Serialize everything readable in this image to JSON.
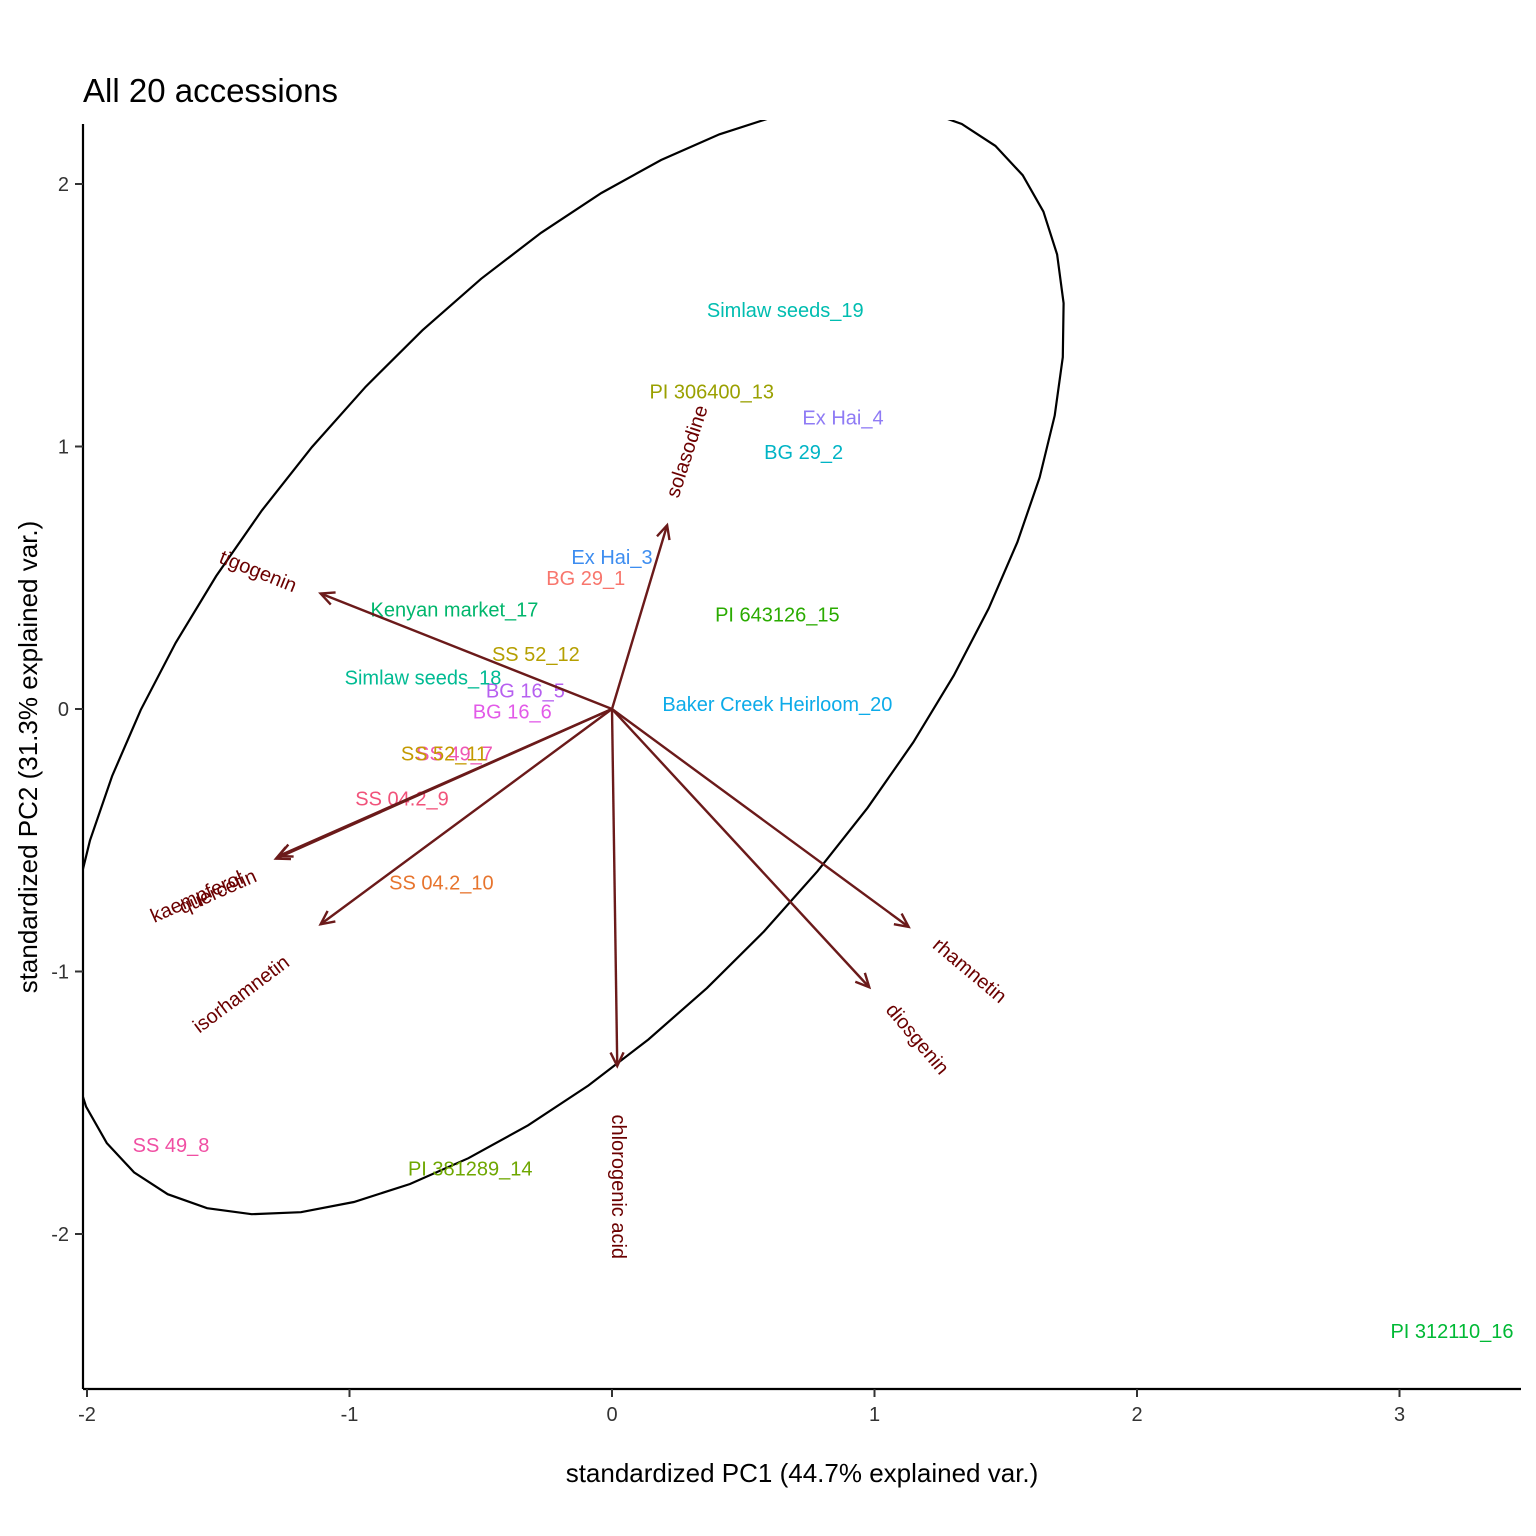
{
  "chart_data": {
    "type": "scatter",
    "title": "All 20 accessions",
    "xlabel": "standardized PC1 (44.7% explained var.)",
    "ylabel": "standardized PC2 (31.3% explained var.)",
    "xlim": [
      -2.02,
      3.45
    ],
    "ylim": [
      -2.62,
      2.22
    ],
    "x_ticks": [
      -2,
      -1,
      0,
      1,
      2,
      3
    ],
    "y_ticks": [
      -2,
      -1,
      0,
      1,
      2
    ],
    "grid": false,
    "legend": "none",
    "points": [
      {
        "label": "BG 29_1",
        "x": -0.1,
        "y": 0.5,
        "color": "#f8766d"
      },
      {
        "label": "BG 29_2",
        "x": 0.73,
        "y": 0.98,
        "color": "#00b4c5"
      },
      {
        "label": "Ex Hai_3",
        "x": 0.0,
        "y": 0.58,
        "color": "#3d8df0"
      },
      {
        "label": "Ex Hai_4",
        "x": 0.88,
        "y": 1.11,
        "color": "#8f7bf5"
      },
      {
        "label": "BG 16_5",
        "x": -0.33,
        "y": 0.07,
        "color": "#b660f0"
      },
      {
        "label": "BG 16_6",
        "x": -0.38,
        "y": -0.01,
        "color": "#e25ae8"
      },
      {
        "label": "SS 49_7",
        "x": -0.6,
        "y": -0.17,
        "color": "#ee56b4"
      },
      {
        "label": "SS 49_8",
        "x": -1.68,
        "y": -1.66,
        "color": "#f04fa3"
      },
      {
        "label": "SS 04.2_9",
        "x": -0.8,
        "y": -0.34,
        "color": "#f1527a"
      },
      {
        "label": "SS 04.2_10",
        "x": -0.65,
        "y": -0.66,
        "color": "#e7742d"
      },
      {
        "label": "SS 52_11",
        "x": -0.64,
        "y": -0.17,
        "color": "#c49a00"
      },
      {
        "label": "SS 52_12",
        "x": -0.29,
        "y": 0.21,
        "color": "#b59f00"
      },
      {
        "label": "PI 306400_13",
        "x": 0.38,
        "y": 1.21,
        "color": "#9aa000"
      },
      {
        "label": "PI 381289_14",
        "x": -0.54,
        "y": -1.75,
        "color": "#6ea700"
      },
      {
        "label": "PI 643126_15",
        "x": 0.63,
        "y": 0.36,
        "color": "#2aab00"
      },
      {
        "label": "PI 312110_16",
        "x": 3.2,
        "y": -2.37,
        "color": "#00b935"
      },
      {
        "label": "Kenyan market_17",
        "x": -0.6,
        "y": 0.38,
        "color": "#00b66c"
      },
      {
        "label": "Simlaw seeds_18",
        "x": -0.72,
        "y": 0.12,
        "color": "#00bb93"
      },
      {
        "label": "Simlaw seeds_19",
        "x": 0.66,
        "y": 1.52,
        "color": "#00bdb0"
      },
      {
        "label": "Baker Creek Heirloom_20",
        "x": 0.63,
        "y": 0.02,
        "color": "#0cabe9"
      }
    ],
    "loadings": [
      {
        "name": "solasodine",
        "x": 0.21,
        "y": 0.7,
        "label_x": 0.29,
        "label_y": 0.98,
        "angle": -72
      },
      {
        "name": "tigogenin",
        "x": -1.11,
        "y": 0.44,
        "label_x": -1.35,
        "label_y": 0.52,
        "angle": 22
      },
      {
        "name": "quercetin",
        "x": -1.27,
        "y": -0.56,
        "label_x": -1.5,
        "label_y": -0.7,
        "angle": -24
      },
      {
        "name": "kaempferol",
        "x": -1.28,
        "y": -0.57,
        "label_x": -1.58,
        "label_y": -0.72,
        "angle": -24
      },
      {
        "name": "isorhamnetin",
        "x": -1.11,
        "y": -0.82,
        "label_x": -1.41,
        "label_y": -1.09,
        "angle": -37
      },
      {
        "name": "chlorogenic acid",
        "x": 0.02,
        "y": -1.36,
        "label_x": 0.02,
        "label_y": -1.82,
        "angle": 90
      },
      {
        "name": "diosgenin",
        "x": 0.98,
        "y": -1.06,
        "label_x": 1.16,
        "label_y": -1.26,
        "angle": 50
      },
      {
        "name": "rhamnetin",
        "x": 1.13,
        "y": -0.83,
        "label_x": 1.36,
        "label_y": -1.0,
        "angle": 40
      }
    ],
    "ellipse": {
      "center_x": -0.18,
      "center_y": 0.19,
      "points": 52
    },
    "arrow_color": "#6b1a1a",
    "label_color": "#6b0000",
    "axis_color": "#000000"
  }
}
